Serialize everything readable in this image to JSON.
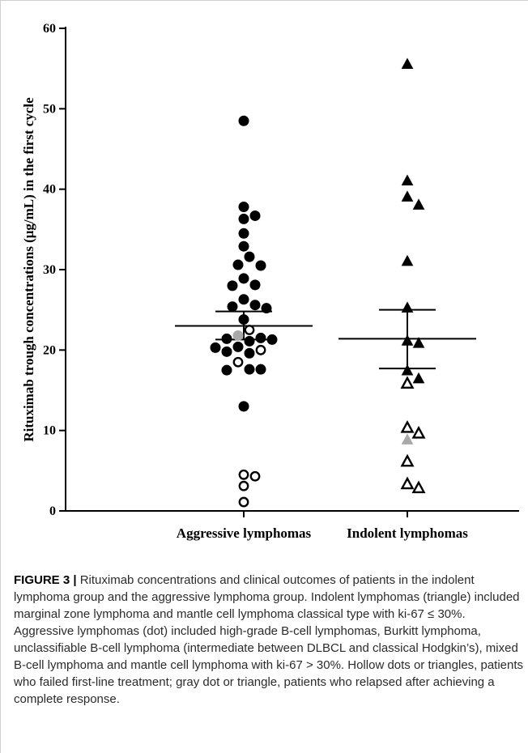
{
  "chart_data": {
    "type": "scatter",
    "title": "",
    "ylabel": "Rituximab trough concentrations (μg/mL) in the first cycle",
    "xlabel": "",
    "ylim": [
      0,
      60
    ],
    "yticks": [
      0,
      10,
      20,
      30,
      40,
      50,
      60
    ],
    "categories": [
      "Aggressive lymphomas",
      "Indolent lymphomas"
    ],
    "grid": false,
    "series": [
      {
        "category": "Aggressive lymphomas",
        "marker": "circle",
        "mean": 23.0,
        "error_upper": 24.8,
        "error_lower": 21.3,
        "points": [
          {
            "value": 48.5,
            "status": "filled"
          },
          {
            "value": 37.8,
            "status": "filled"
          },
          {
            "value": 36.7,
            "status": "filled"
          },
          {
            "value": 36.3,
            "status": "filled"
          },
          {
            "value": 34.5,
            "status": "filled"
          },
          {
            "value": 32.9,
            "status": "filled"
          },
          {
            "value": 31.6,
            "status": "filled"
          },
          {
            "value": 30.5,
            "status": "filled"
          },
          {
            "value": 30.6,
            "status": "filled"
          },
          {
            "value": 28.9,
            "status": "filled"
          },
          {
            "value": 28.0,
            "status": "filled"
          },
          {
            "value": 28.1,
            "status": "filled"
          },
          {
            "value": 26.3,
            "status": "filled"
          },
          {
            "value": 25.4,
            "status": "filled"
          },
          {
            "value": 25.2,
            "status": "filled"
          },
          {
            "value": 25.6,
            "status": "filled"
          },
          {
            "value": 23.8,
            "status": "filled"
          },
          {
            "value": 21.4,
            "status": "filled"
          },
          {
            "value": 21.3,
            "status": "filled"
          },
          {
            "value": 21.5,
            "status": "filled"
          },
          {
            "value": 21.1,
            "status": "filled"
          },
          {
            "value": 20.4,
            "status": "filled"
          },
          {
            "value": 20.3,
            "status": "filled"
          },
          {
            "value": 19.8,
            "status": "filled"
          },
          {
            "value": 19.6,
            "status": "filled"
          },
          {
            "value": 17.6,
            "status": "filled"
          },
          {
            "value": 17.5,
            "status": "filled"
          },
          {
            "value": 17.6,
            "status": "filled"
          },
          {
            "value": 13.0,
            "status": "filled"
          },
          {
            "value": 21.8,
            "status": "gray"
          },
          {
            "value": 22.5,
            "status": "hollow"
          },
          {
            "value": 18.5,
            "status": "hollow"
          },
          {
            "value": 20.0,
            "status": "hollow"
          },
          {
            "value": 4.5,
            "status": "hollow"
          },
          {
            "value": 4.3,
            "status": "hollow"
          },
          {
            "value": 3.1,
            "status": "hollow"
          },
          {
            "value": 1.1,
            "status": "hollow"
          }
        ]
      },
      {
        "category": "Indolent lymphomas",
        "marker": "triangle",
        "mean": 21.4,
        "error_upper": 25.0,
        "error_lower": 17.7,
        "points": [
          {
            "value": 55.5,
            "status": "filled"
          },
          {
            "value": 41.0,
            "status": "filled"
          },
          {
            "value": 39.0,
            "status": "filled"
          },
          {
            "value": 38.0,
            "status": "filled"
          },
          {
            "value": 31.0,
            "status": "filled"
          },
          {
            "value": 25.2,
            "status": "filled"
          },
          {
            "value": 21.1,
            "status": "filled"
          },
          {
            "value": 20.8,
            "status": "filled"
          },
          {
            "value": 17.4,
            "status": "filled"
          },
          {
            "value": 16.4,
            "status": "filled"
          },
          {
            "value": 15.8,
            "status": "hollow"
          },
          {
            "value": 10.3,
            "status": "hollow"
          },
          {
            "value": 9.6,
            "status": "hollow"
          },
          {
            "value": 8.8,
            "status": "gray"
          },
          {
            "value": 6.1,
            "status": "hollow"
          },
          {
            "value": 3.3,
            "status": "hollow"
          },
          {
            "value": 2.8,
            "status": "hollow"
          }
        ]
      }
    ],
    "colors": {
      "filled": "#000000",
      "hollow": "#ffffff",
      "gray": "#a9a9a9",
      "axis": "#000000"
    }
  },
  "caption": {
    "lead": "FIGURE 3 |",
    "text": " Rituximab concentrations and clinical outcomes of patients in the indolent lymphoma group and the aggressive lymphoma group. Indolent lymphomas (triangle) included marginal zone lymphoma and mantle cell lymphoma classical type with ki-67 ≤ 30%. Aggressive lymphomas (dot) included high-grade B-cell lymphomas, Burkitt lymphoma, unclassifiable B-cell lymphoma (intermediate between DLBCL and classical Hodgkin’s), mixed B-cell lymphoma and mantle cell lymphoma with ki-67 > 30%. Hollow dots or triangles, patients who failed first-line treatment; gray dot or triangle, patients who relapsed after achieving a complete response."
  }
}
